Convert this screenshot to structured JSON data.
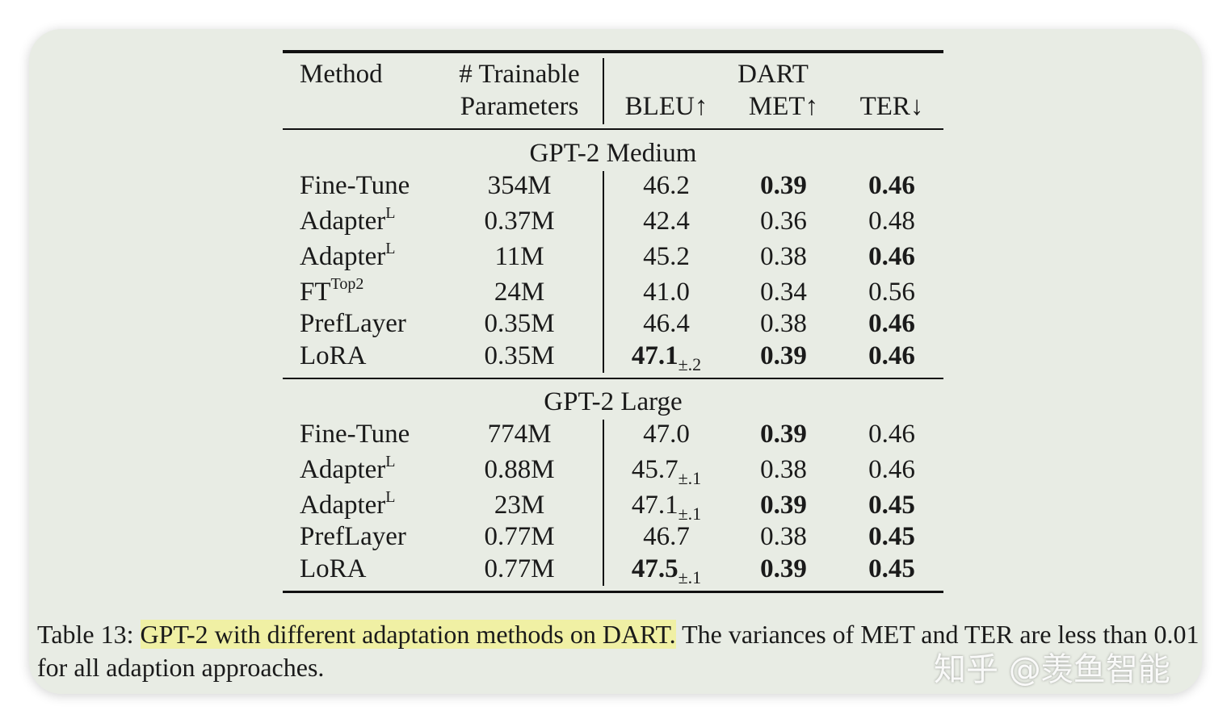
{
  "table": {
    "header": {
      "method": "Method",
      "params_line1": "# Trainable",
      "params_line2": "Parameters",
      "dataset": "DART",
      "bleu": "BLEU↑",
      "met": "MET↑",
      "ter": "TER↓"
    },
    "groups": [
      {
        "name": "GPT-2 Medium",
        "rows": [
          {
            "method": "Fine-Tune",
            "sup": "",
            "params": "354M",
            "bleu": "46.2",
            "bleu_pm": "",
            "bleu_bold": false,
            "met": "0.39",
            "met_bold": true,
            "ter": "0.46",
            "ter_bold": true
          },
          {
            "method": "Adapter",
            "sup": "L",
            "params": "0.37M",
            "bleu": "42.4",
            "bleu_pm": "",
            "bleu_bold": false,
            "met": "0.36",
            "met_bold": false,
            "ter": "0.48",
            "ter_bold": false
          },
          {
            "method": "Adapter",
            "sup": "L",
            "params": "11M",
            "bleu": "45.2",
            "bleu_pm": "",
            "bleu_bold": false,
            "met": "0.38",
            "met_bold": false,
            "ter": "0.46",
            "ter_bold": true
          },
          {
            "method": "FT",
            "sup": "Top2",
            "params": "24M",
            "bleu": "41.0",
            "bleu_pm": "",
            "bleu_bold": false,
            "met": "0.34",
            "met_bold": false,
            "ter": "0.56",
            "ter_bold": false
          },
          {
            "method": "PrefLayer",
            "sup": "",
            "params": "0.35M",
            "bleu": "46.4",
            "bleu_pm": "",
            "bleu_bold": false,
            "met": "0.38",
            "met_bold": false,
            "ter": "0.46",
            "ter_bold": true
          },
          {
            "method": "LoRA",
            "sup": "",
            "params": "0.35M",
            "bleu": "47.1",
            "bleu_pm": "±.2",
            "bleu_bold": true,
            "met": "0.39",
            "met_bold": true,
            "ter": "0.46",
            "ter_bold": true
          }
        ]
      },
      {
        "name": "GPT-2 Large",
        "rows": [
          {
            "method": "Fine-Tune",
            "sup": "",
            "params": "774M",
            "bleu": "47.0",
            "bleu_pm": "",
            "bleu_bold": false,
            "met": "0.39",
            "met_bold": true,
            "ter": "0.46",
            "ter_bold": false
          },
          {
            "method": "Adapter",
            "sup": "L",
            "params": "0.88M",
            "bleu": "45.7",
            "bleu_pm": "±.1",
            "bleu_bold": false,
            "met": "0.38",
            "met_bold": false,
            "ter": "0.46",
            "ter_bold": false
          },
          {
            "method": "Adapter",
            "sup": "L",
            "params": "23M",
            "bleu": "47.1",
            "bleu_pm": "±.1",
            "bleu_bold": false,
            "met": "0.39",
            "met_bold": true,
            "ter": "0.45",
            "ter_bold": true
          },
          {
            "method": "PrefLayer",
            "sup": "",
            "params": "0.77M",
            "bleu": "46.7",
            "bleu_pm": "",
            "bleu_bold": false,
            "met": "0.38",
            "met_bold": false,
            "ter": "0.45",
            "ter_bold": true
          },
          {
            "method": "LoRA",
            "sup": "",
            "params": "0.77M",
            "bleu": "47.5",
            "bleu_pm": "±.1",
            "bleu_bold": true,
            "met": "0.39",
            "met_bold": true,
            "ter": "0.45",
            "ter_bold": true
          }
        ]
      }
    ]
  },
  "caption": {
    "label": "Table 13:",
    "highlight": "GPT-2 with different adaptation methods on DART.",
    "rest": "The variances of MET and TER are less than 0.01 for all adaption approaches."
  },
  "watermark": "知乎 @羡鱼智能",
  "colors": {
    "card_bg": "#e8ece4",
    "highlight": "#f0f0a4"
  }
}
